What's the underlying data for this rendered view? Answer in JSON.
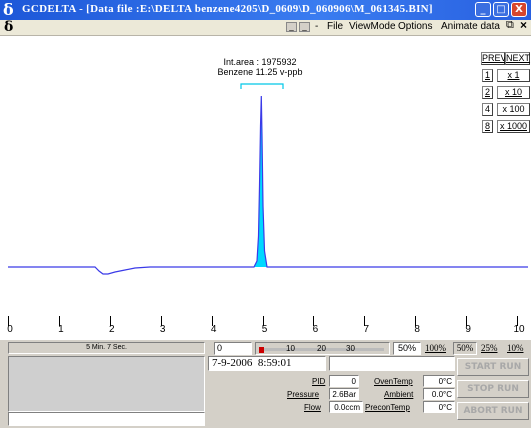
{
  "window": {
    "logo": "δ",
    "title": "GCDELTA - [Data file :E:\\DELTA benzene4205\\D_0609\\D_060906\\M_061345.BIN]",
    "minimize": "_",
    "maximize": "□",
    "close": "X"
  },
  "menubar": {
    "logo": "δ",
    "mdi_min": "_",
    "mdi_restore": "_",
    "mdi_dash": "-",
    "items": [
      "File",
      "ViewMode",
      "Options",
      "Animate data"
    ],
    "restore_icon": "⧉",
    "close_icon": "×"
  },
  "peak": {
    "area_label": "Int.area : 1975932",
    "compound_label": "Benzene 11.25 v-ppb"
  },
  "nav": {
    "prev": "PREV.",
    "next": "NEXT",
    "zoom_keys": [
      "1",
      "2",
      "4",
      "8"
    ],
    "zoom_values": [
      "x 1",
      "x 10",
      "x 100",
      "x 1000"
    ]
  },
  "axis": {
    "ticks": [
      "0",
      "1",
      "2",
      "3",
      "4",
      "5",
      "6",
      "7",
      "8",
      "9",
      "10"
    ]
  },
  "status": {
    "elapsed": "5 Min. 7 Sec.",
    "counter": "0",
    "scale_labels": [
      "10",
      "20",
      "30"
    ],
    "level_pct": "50%",
    "pct_buttons": [
      "100%",
      "50%",
      "25%",
      "10%"
    ],
    "date": "7-9-2006",
    "time": "8:59:01"
  },
  "readings": {
    "pid_label": "PID",
    "pid_value": "0",
    "pressure_label": "Pressure",
    "pressure_value": "2.6Bar",
    "flow_label": "Flow",
    "flow_value": "0.0ccm",
    "oventemp_label": "OvenTemp",
    "oventemp_value": "0°C",
    "ambient_label": "Ambient",
    "ambient_value": "0.0°C",
    "precontemp_label": "PreconTemp",
    "precontemp_value": "0°C"
  },
  "run_buttons": {
    "start": "START RUN",
    "stop": "STOP RUN",
    "abort": "ABORT RUN"
  },
  "colors": {
    "trace": "#3a3ae8",
    "peak_fill": "#00d8ff",
    "titlebar": "#2a65e4"
  }
}
